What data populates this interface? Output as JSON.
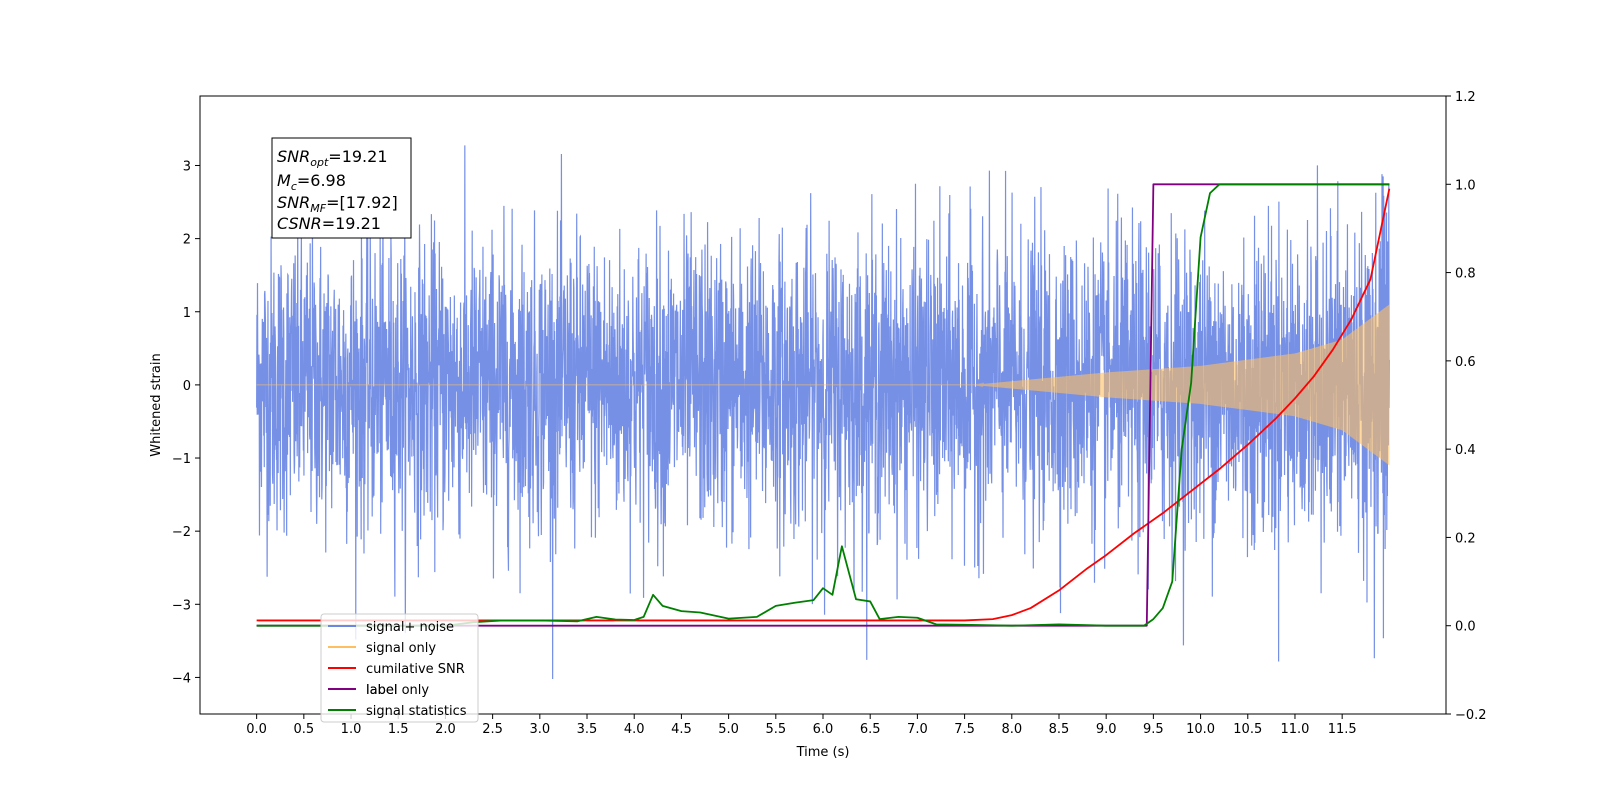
{
  "chart_data": {
    "type": "line",
    "xlabel": "Time (s)",
    "ylabel": "Whitened strain",
    "xlim": [
      -0.6,
      12.6
    ],
    "ylim": [
      -4.5,
      3.95
    ],
    "y2lim": [
      -0.2,
      1.2
    ],
    "x_ticks": [
      "0.0",
      "0.5",
      "1.0",
      "1.5",
      "2.0",
      "2.5",
      "3.0",
      "3.5",
      "4.0",
      "4.5",
      "5.0",
      "5.5",
      "6.0",
      "6.5",
      "7.0",
      "7.5",
      "8.0",
      "8.5",
      "9.0",
      "9.5",
      "10.0",
      "10.5",
      "11.0",
      "11.5"
    ],
    "y_ticks": [
      -4,
      -3,
      -2,
      -1,
      0,
      1,
      2,
      3
    ],
    "y_tick_labels": [
      "−4",
      "−3",
      "−2",
      "−1",
      "0",
      "1",
      "2",
      "3"
    ],
    "y2_ticks": [
      "−0.2",
      "0.0",
      "0.2",
      "0.4",
      "0.6",
      "0.8",
      "1.0",
      "1.2"
    ],
    "annotation": {
      "snr_opt": {
        "base": "SNR",
        "sub": "opt",
        "value": "=19.21"
      },
      "mc": {
        "base": "M",
        "sub": "c",
        "value": "=6.98"
      },
      "snr_mf": {
        "base": "SNR",
        "sub": "MF",
        "value": "=[17.92]"
      },
      "csnr": {
        "base": "CSNR",
        "value": "=19.21"
      }
    },
    "legend": {
      "placement": "lower-left",
      "entries": [
        "signal+ noise",
        "signal only",
        "cumilative SNR",
        "label",
        "signal statistics"
      ],
      "overlapped_text": "label only"
    },
    "series": [
      {
        "name": "signal+ noise",
        "axis": "left",
        "color": "#6a87e4",
        "t_start": 0.0,
        "t_end": 12.0,
        "amplitude_range": [
          -4.1,
          3.6
        ]
      },
      {
        "name": "signal only",
        "axis": "left",
        "color": "#ffbf60",
        "t_start": 0.0,
        "t_end": 12.0,
        "envelope": {
          "t": [
            0,
            7.6,
            8.0,
            9.0,
            10.0,
            11.0,
            11.5,
            12.0
          ],
          "a": [
            0,
            0,
            0.05,
            0.17,
            0.26,
            0.43,
            0.62,
            1.1
          ]
        }
      },
      {
        "name": "cumilative SNR",
        "axis": "right",
        "color": "#ff0000",
        "x": [
          0,
          7.5,
          7.8,
          8.0,
          8.2,
          8.5,
          8.8,
          9.0,
          9.3,
          9.6,
          9.9,
          10.2,
          10.5,
          10.8,
          11.0,
          11.2,
          11.4,
          11.6,
          11.8,
          12.0
        ],
        "y": [
          0.012,
          0.012,
          0.015,
          0.024,
          0.04,
          0.08,
          0.13,
          0.16,
          0.21,
          0.255,
          0.305,
          0.355,
          0.41,
          0.47,
          0.515,
          0.565,
          0.625,
          0.695,
          0.785,
          0.99
        ]
      },
      {
        "name": "label",
        "axis": "right",
        "color": "#800080",
        "x": [
          0,
          9.43,
          9.5,
          12.0
        ],
        "y": [
          0,
          0,
          1,
          1
        ]
      },
      {
        "name": "signal statistics",
        "axis": "right",
        "color": "#008000",
        "x": [
          0,
          2.0,
          2.3,
          2.6,
          3.0,
          3.4,
          3.6,
          3.8,
          4.0,
          4.1,
          4.2,
          4.3,
          4.5,
          4.7,
          5.0,
          5.3,
          5.5,
          5.7,
          5.9,
          6.0,
          6.1,
          6.2,
          6.3,
          6.35,
          6.5,
          6.6,
          6.8,
          7.0,
          7.2,
          7.5,
          8.0,
          8.5,
          9.0,
          9.4,
          9.5,
          9.6,
          9.7,
          9.8,
          9.9,
          10.0,
          10.1,
          10.2,
          10.5,
          12.0
        ],
        "y": [
          0.0,
          0.0,
          0.008,
          0.012,
          0.012,
          0.01,
          0.02,
          0.014,
          0.013,
          0.02,
          0.07,
          0.045,
          0.033,
          0.03,
          0.016,
          0.02,
          0.045,
          0.052,
          0.058,
          0.085,
          0.07,
          0.18,
          0.1,
          0.06,
          0.055,
          0.015,
          0.02,
          0.018,
          0.003,
          0.002,
          0.0,
          0.003,
          0.0,
          0.0,
          0.015,
          0.04,
          0.1,
          0.4,
          0.55,
          0.88,
          0.98,
          1.0,
          1.0,
          1.0
        ]
      }
    ]
  }
}
